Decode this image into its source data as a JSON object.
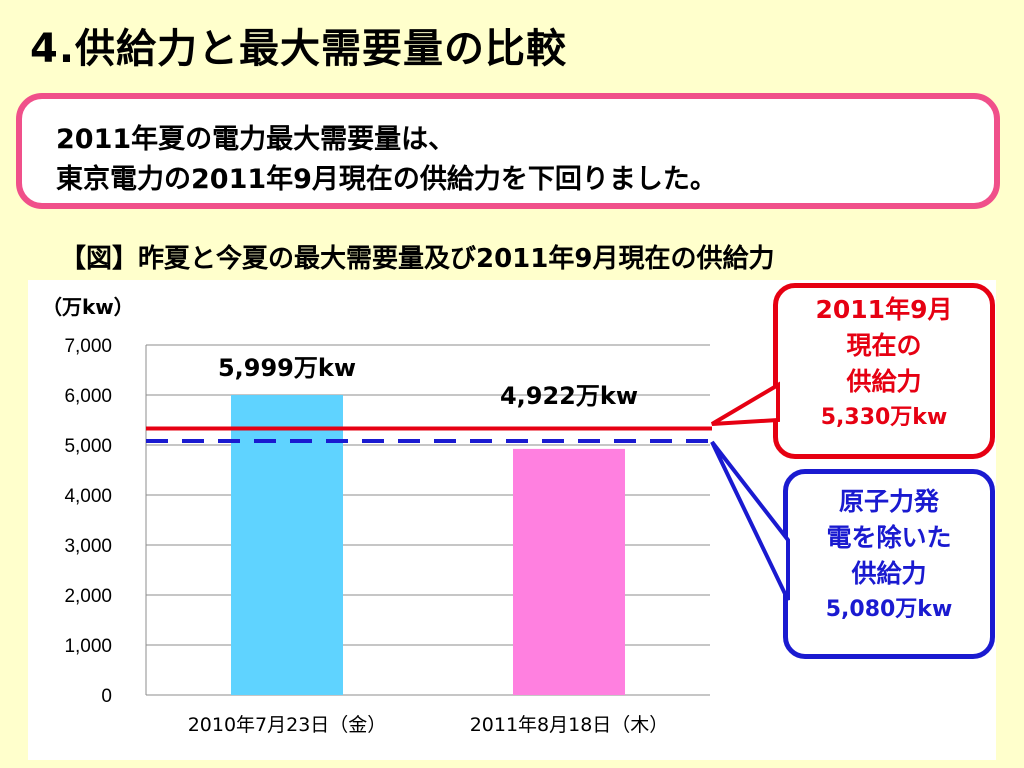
{
  "title": "4.供給力と最大需要量の比較",
  "summary": {
    "line1": "2011年夏の電力最大需要量は、",
    "line2": "東京電力の2011年9月現在の供給力を下回りました。"
  },
  "figure_caption": "【図】昨夏と今夏の最大需要量及び2011年9月現在の供給力",
  "callouts": {
    "supply": {
      "lines": [
        "2011年9月",
        "現在の",
        "供給力"
      ],
      "value": "5,330万kw",
      "color": "#e60012"
    },
    "non_nuclear": {
      "lines": [
        "原子力発",
        "電を除いた",
        "供給力"
      ],
      "value": "5,080万kw",
      "color": "#1a1ad0"
    }
  },
  "chart_data": {
    "type": "bar",
    "unit_label": "（万kw）",
    "categories": [
      "2010年7月23日（金）",
      "2011年8月18日（木）"
    ],
    "values": [
      5999,
      4922
    ],
    "bar_colors": [
      "#5fd3ff",
      "#ff80e0"
    ],
    "data_labels": [
      "5,999万kw",
      "4,922万kw"
    ],
    "ylim": [
      0,
      7000
    ],
    "yticks": [
      0,
      1000,
      2000,
      3000,
      4000,
      5000,
      6000,
      7000
    ],
    "ytick_labels": [
      "0",
      "1,000",
      "2,000",
      "3,000",
      "4,000",
      "5,000",
      "6,000",
      "7,000"
    ],
    "grid": true,
    "reference_lines": [
      {
        "value": 5330,
        "style": "solid",
        "color": "#e60012"
      },
      {
        "value": 5080,
        "style": "dashed",
        "color": "#1a1ad0"
      }
    ]
  }
}
